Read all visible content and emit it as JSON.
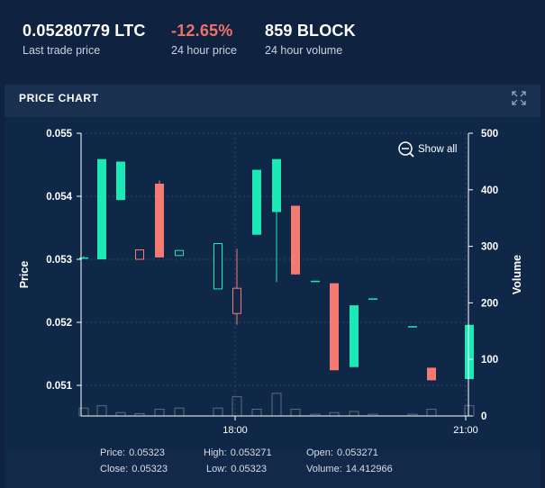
{
  "stats": {
    "last_trade": {
      "value": "0.05280779 LTC",
      "label": "Last trade price"
    },
    "change": {
      "value": "-12.65%",
      "label": "24 hour price"
    },
    "volume": {
      "value": "859 BLOCK",
      "label": "24 hour volume"
    }
  },
  "panel": {
    "title": "PRICE CHART",
    "show_all_label": "Show all",
    "icons": {
      "expand": "expand-arrows-icon",
      "zoom": "zoom-out-icon"
    }
  },
  "colors": {
    "up": "#1de9b6",
    "down": "#f47a72",
    "volume_bar": "#5b6b82",
    "background": "#0f2340"
  },
  "chart_data": {
    "type": "candlestick",
    "y_left": {
      "label": "Price",
      "ticks": [
        "0.055",
        "0.054",
        "0.053",
        "0.052",
        "0.051"
      ],
      "range": [
        0.0504,
        0.055
      ]
    },
    "y_right": {
      "label": "Volume",
      "ticks": [
        "500",
        "400",
        "300",
        "200",
        "100",
        "0"
      ],
      "range": [
        0,
        500
      ]
    },
    "x_ticks": [
      "18:00",
      "21:00"
    ],
    "grid": true,
    "candles": [
      {
        "open": 0.05303,
        "close": 0.05303,
        "high": 0.05305,
        "low": 0.05301,
        "volume": 14
      },
      {
        "open": 0.053,
        "close": 0.05459,
        "high": 0.05459,
        "low": 0.053,
        "volume": 18
      },
      {
        "open": 0.05394,
        "close": 0.05455,
        "high": 0.05455,
        "low": 0.05394,
        "volume": 6
      },
      {
        "open": 0.05315,
        "close": 0.053,
        "high": 0.05315,
        "low": 0.053,
        "volume": 4
      },
      {
        "open": 0.0542,
        "close": 0.05303,
        "high": 0.05425,
        "low": 0.05303,
        "volume": 12
      },
      {
        "open": 0.05306,
        "close": 0.05314,
        "high": 0.05314,
        "low": 0.05306,
        "volume": 14
      },
      {
        "open": 0.05253,
        "close": 0.05325,
        "high": 0.05325,
        "low": 0.05253,
        "volume": 14
      },
      {
        "open": 0.05254,
        "close": 0.05214,
        "high": 0.05317,
        "low": 0.05196,
        "volume": 34
      },
      {
        "open": 0.05339,
        "close": 0.05442,
        "high": 0.05442,
        "low": 0.05339,
        "volume": 12
      },
      {
        "open": 0.05375,
        "close": 0.05459,
        "high": 0.05459,
        "low": 0.05264,
        "volume": 40
      },
      {
        "open": 0.05385,
        "close": 0.05276,
        "high": 0.05385,
        "low": 0.05276,
        "volume": 12
      },
      {
        "open": 0.05266,
        "close": 0.05266,
        "high": 0.05266,
        "low": 0.05266,
        "volume": 3
      },
      {
        "open": 0.05262,
        "close": 0.05124,
        "high": 0.05262,
        "low": 0.05124,
        "volume": 6
      },
      {
        "open": 0.05129,
        "close": 0.05227,
        "high": 0.05227,
        "low": 0.05129,
        "volume": 8
      },
      {
        "open": 0.05238,
        "close": 0.05238,
        "high": 0.05238,
        "low": 0.05238,
        "volume": 3
      },
      {
        "open": 0.05194,
        "close": 0.05194,
        "high": 0.05194,
        "low": 0.05194,
        "volume": 3
      },
      {
        "open": 0.05128,
        "close": 0.05108,
        "high": 0.05128,
        "low": 0.05108,
        "volume": 12
      },
      {
        "open": 0.0511,
        "close": 0.05196,
        "high": 0.05196,
        "low": 0.0511,
        "volume": 18
      }
    ]
  },
  "tooltip": {
    "price": {
      "label": "Price:",
      "value": "0.05323"
    },
    "high": {
      "label": "High:",
      "value": "0.053271"
    },
    "open": {
      "label": "Open:",
      "value": "0.053271"
    },
    "close": {
      "label": "Close:",
      "value": "0.05323"
    },
    "low": {
      "label": "Low:",
      "value": "0.05323"
    },
    "volume": {
      "label": "Volume:",
      "value": "14.412966"
    }
  }
}
